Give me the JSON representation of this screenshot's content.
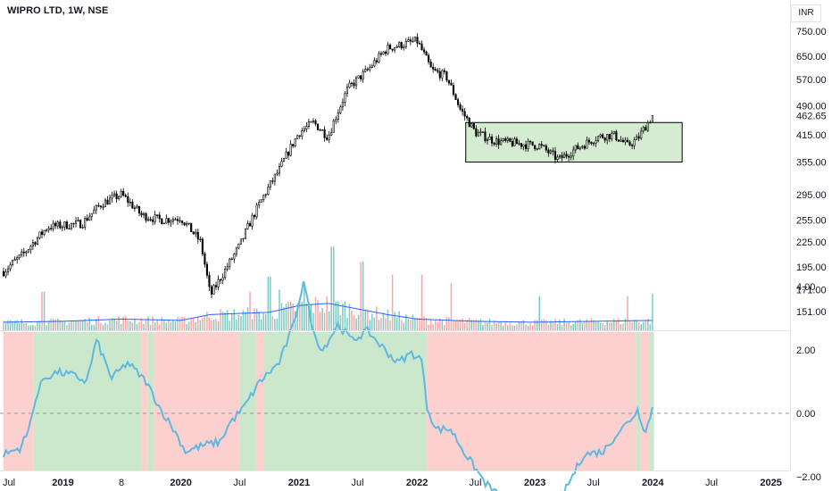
{
  "header": {
    "title": "WIPRO LTD, 1W, NSE",
    "currency": "INR"
  },
  "colors": {
    "candle": "#000000",
    "volume_up": "#80cbc4",
    "volume_down": "#f7a9a7",
    "volume_ma": "#2962ff",
    "indicator_line": "#5eb8e0",
    "bull_bg": "#cce8cc",
    "bear_bg": "#fdd0d0",
    "box_fill": "#d6ecd2",
    "zero_line": "#9598a1"
  },
  "chart_data": [
    {
      "type": "candlestick",
      "title": "WIPRO LTD, 1W, NSE",
      "y_axis_ticks": [
        750,
        650,
        570,
        490,
        462.65,
        415,
        355,
        295,
        255,
        225,
        195,
        171,
        151
      ],
      "y_axis_tick_labels": [
        "750.00",
        "650.00",
        "570.00",
        "490.00",
        "462.65",
        "415.00",
        "355.00",
        "295.00",
        "255.00",
        "225.00",
        "195.00",
        "171.00",
        "151.00"
      ],
      "y_scale": "log",
      "last_price": 462.65,
      "price_path": [
        [
          "2018-07-01",
          190
        ],
        [
          "2018-09-01",
          210
        ],
        [
          "2018-11-15",
          245
        ],
        [
          "2019-03-01",
          250
        ],
        [
          "2019-05-01",
          280
        ],
        [
          "2019-07-01",
          295
        ],
        [
          "2019-09-01",
          262
        ],
        [
          "2019-11-01",
          255
        ],
        [
          "2020-01-01",
          258
        ],
        [
          "2020-03-01",
          225
        ],
        [
          "2020-04-01",
          165
        ],
        [
          "2020-05-15",
          190
        ],
        [
          "2020-07-01",
          220
        ],
        [
          "2020-09-01",
          280
        ],
        [
          "2020-11-01",
          340
        ],
        [
          "2021-01-01",
          420
        ],
        [
          "2021-02-15",
          445
        ],
        [
          "2021-04-01",
          410
        ],
        [
          "2021-06-01",
          540
        ],
        [
          "2021-08-01",
          600
        ],
        [
          "2021-10-01",
          680
        ],
        [
          "2021-12-01",
          700
        ],
        [
          "2022-01-01",
          710
        ],
        [
          "2022-02-15",
          600
        ],
        [
          "2022-04-01",
          580
        ],
        [
          "2022-05-15",
          480
        ],
        [
          "2022-07-01",
          420
        ],
        [
          "2022-09-01",
          400
        ],
        [
          "2022-11-01",
          395
        ],
        [
          "2023-01-15",
          390
        ],
        [
          "2023-03-15",
          360
        ],
        [
          "2023-05-01",
          380
        ],
        [
          "2023-07-15",
          410
        ],
        [
          "2023-09-01",
          415
        ],
        [
          "2023-10-15",
          390
        ],
        [
          "2023-11-15",
          405
        ],
        [
          "2023-12-31",
          462
        ]
      ],
      "consolidation_box": {
        "x_start": "2022-06-01",
        "x_end": "2024-04-01",
        "y_low": 355,
        "y_high": 445
      }
    },
    {
      "type": "bar",
      "title": "Volume",
      "profile": [
        [
          "2018-07-01",
          0.18
        ],
        [
          "2019-01-01",
          0.2
        ],
        [
          "2019-07-01",
          0.25
        ],
        [
          "2020-01-01",
          0.22
        ],
        [
          "2020-04-01",
          0.35
        ],
        [
          "2020-10-01",
          0.4
        ],
        [
          "2021-01-01",
          0.55
        ],
        [
          "2021-04-01",
          0.6
        ],
        [
          "2021-10-01",
          0.35
        ],
        [
          "2022-01-01",
          0.25
        ],
        [
          "2022-07-01",
          0.2
        ],
        [
          "2023-01-01",
          0.18
        ],
        [
          "2023-07-01",
          0.2
        ],
        [
          "2023-12-31",
          0.22
        ]
      ],
      "spikes": [
        [
          "2018-11-01",
          0.9
        ],
        [
          "2020-08-01",
          0.9
        ],
        [
          "2020-10-01",
          1.25
        ],
        [
          "2020-11-01",
          0.95
        ],
        [
          "2021-01-15",
          1.15
        ],
        [
          "2021-04-15",
          1.95
        ],
        [
          "2021-07-15",
          1.6
        ],
        [
          "2021-10-15",
          1.3
        ],
        [
          "2022-01-15",
          1.3
        ],
        [
          "2022-04-15",
          1.1
        ],
        [
          "2023-01-15",
          0.8
        ],
        [
          "2023-10-15",
          0.8
        ],
        [
          "2023-12-31",
          0.85
        ]
      ]
    },
    {
      "type": "line",
      "title": "Indicator",
      "y_axis_ticks": [
        4,
        2,
        0,
        -2
      ],
      "y_axis_tick_labels": [
        "4.00",
        "2.00",
        "0.00",
        "−2.00"
      ],
      "ylim": [
        -3.2,
        4.8
      ],
      "zero_line": 0,
      "values": [
        [
          "2018-07-01",
          -1.3
        ],
        [
          "2018-08-20",
          -1.1
        ],
        [
          "2018-09-15",
          -0.6
        ],
        [
          "2018-10-01",
          0.2
        ],
        [
          "2018-11-01",
          1.1
        ],
        [
          "2018-12-15",
          1.3
        ],
        [
          "2019-02-01",
          1.2
        ],
        [
          "2019-03-15",
          1.0
        ],
        [
          "2019-04-15",
          2.3
        ],
        [
          "2019-06-01",
          1.1
        ],
        [
          "2019-07-20",
          1.6
        ],
        [
          "2019-09-15",
          1.0
        ],
        [
          "2019-11-01",
          0.1
        ],
        [
          "2019-12-15",
          -0.6
        ],
        [
          "2020-01-15",
          -1.2
        ],
        [
          "2020-03-15",
          -1.0
        ],
        [
          "2020-05-01",
          -0.9
        ],
        [
          "2020-06-01",
          -0.3
        ],
        [
          "2020-07-15",
          0.2
        ],
        [
          "2020-09-01",
          1.0
        ],
        [
          "2020-11-01",
          1.6
        ],
        [
          "2020-12-15",
          2.8
        ],
        [
          "2021-01-15",
          4.2
        ],
        [
          "2021-02-15",
          2.5
        ],
        [
          "2021-03-15",
          2.0
        ],
        [
          "2021-05-01",
          2.8
        ],
        [
          "2021-06-15",
          2.3
        ],
        [
          "2021-08-01",
          2.6
        ],
        [
          "2021-09-15",
          2.1
        ],
        [
          "2021-11-01",
          1.6
        ],
        [
          "2021-12-15",
          1.9
        ],
        [
          "2022-01-15",
          1.7
        ],
        [
          "2022-02-01",
          0.2
        ],
        [
          "2022-03-01",
          -0.5
        ],
        [
          "2022-04-15",
          -0.5
        ],
        [
          "2022-06-01",
          -1.3
        ],
        [
          "2022-08-01",
          -2.2
        ],
        [
          "2022-10-01",
          -2.8
        ],
        [
          "2022-12-01",
          -2.6
        ],
        [
          "2023-02-01",
          -2.9
        ],
        [
          "2023-04-01",
          -2.5
        ],
        [
          "2023-06-01",
          -1.3
        ],
        [
          "2023-08-01",
          -1.2
        ],
        [
          "2023-09-15",
          -0.6
        ],
        [
          "2023-10-15",
          -0.3
        ],
        [
          "2023-11-15",
          0.1
        ],
        [
          "2023-12-10",
          -0.6
        ],
        [
          "2023-12-31",
          0.2
        ]
      ],
      "regimes": [
        [
          "2018-07-01",
          "2018-10-01",
          "bear"
        ],
        [
          "2018-10-01",
          "2019-09-01",
          "bull"
        ],
        [
          "2019-09-01",
          "2019-09-20",
          "bear"
        ],
        [
          "2019-09-20",
          "2019-10-10",
          "bull"
        ],
        [
          "2019-10-10",
          "2020-07-01",
          "bear"
        ],
        [
          "2020-07-01",
          "2020-08-20",
          "bull"
        ],
        [
          "2020-08-20",
          "2020-09-15",
          "bear"
        ],
        [
          "2020-09-15",
          "2022-02-01",
          "bull"
        ],
        [
          "2022-02-01",
          "2023-11-10",
          "bear"
        ],
        [
          "2023-11-10",
          "2023-11-25",
          "bull"
        ],
        [
          "2023-11-25",
          "2023-12-20",
          "bear"
        ],
        [
          "2023-12-20",
          "2024-01-05",
          "bull"
        ]
      ]
    }
  ],
  "x_axis": {
    "labels": [
      {
        "date": "2018-07-01",
        "text": "Jul",
        "bold": false
      },
      {
        "date": "2019-01-01",
        "text": "2019",
        "bold": true
      },
      {
        "date": "2019-07-01",
        "text": "8",
        "bold": false
      },
      {
        "date": "2020-01-01",
        "text": "2020",
        "bold": true
      },
      {
        "date": "2020-07-01",
        "text": "Jul",
        "bold": false
      },
      {
        "date": "2021-01-01",
        "text": "2021",
        "bold": true
      },
      {
        "date": "2021-07-01",
        "text": "Jul",
        "bold": false
      },
      {
        "date": "2022-01-01",
        "text": "2022",
        "bold": true
      },
      {
        "date": "2022-07-01",
        "text": "Jul",
        "bold": false
      },
      {
        "date": "2023-01-01",
        "text": "2023",
        "bold": true
      },
      {
        "date": "2023-07-01",
        "text": "Jul",
        "bold": false
      },
      {
        "date": "2024-01-01",
        "text": "2024",
        "bold": true
      },
      {
        "date": "2024-07-01",
        "text": "Jul",
        "bold": false
      },
      {
        "date": "2025-01-01",
        "text": "2025",
        "bold": true
      }
    ]
  }
}
